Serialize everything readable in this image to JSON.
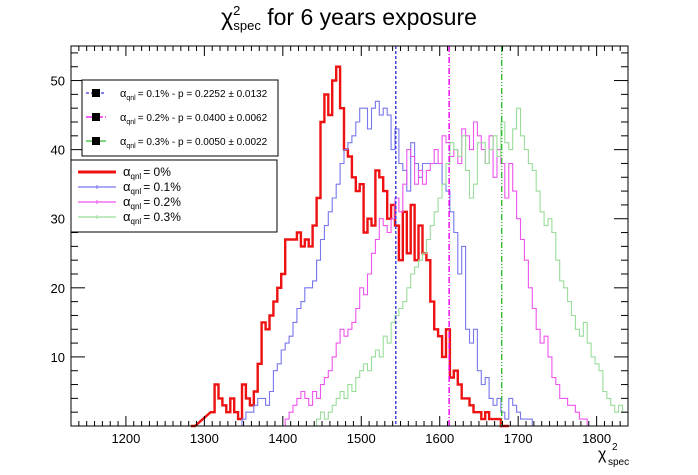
{
  "chart_data": {
    "type": "step-histogram",
    "title": "for 6 years exposure",
    "title_symbol": "χ",
    "title_sup": "2",
    "title_sub": "spec",
    "xlabel_symbol": "χ",
    "xlabel_sup": "2",
    "xlabel_sub": "spec",
    "xlim": [
      1130,
      1840
    ],
    "ylim": [
      0,
      55
    ],
    "x_ticks": [
      1200,
      1300,
      1400,
      1500,
      1600,
      1700,
      1800
    ],
    "y_ticks": [
      10,
      20,
      30,
      40,
      50
    ],
    "bin_width": 5,
    "legend_pvalues": [
      {
        "label_sym": "α",
        "label_sub": "qnl",
        "text": "= 0.1% - p = 0.2252 ± 0.0132",
        "color": "#3333dd",
        "dash": "3,2",
        "marker_x": 1544
      },
      {
        "label_sym": "α",
        "label_sub": "qnl",
        "text": "= 0.2% - p = 0.0400 ± 0.0062",
        "color": "#ee00ee",
        "dash": "6,2,1,2",
        "marker_x": 1612
      },
      {
        "label_sym": "α",
        "label_sub": "qnl",
        "text": "= 0.3% - p = 0.0050 ± 0.0022",
        "color": "#33bb33",
        "dash": "6,2,1,2,1,2",
        "marker_x": 1679
      }
    ],
    "series": [
      {
        "name": "= 0%",
        "label_sym": "α",
        "label_sub": "qnl",
        "color": "#ee1111",
        "width": 2.4,
        "x": [
          1283,
          1308,
          1313,
          1318,
          1323,
          1328,
          1333,
          1338,
          1343,
          1348,
          1353,
          1358,
          1363,
          1368,
          1373,
          1378,
          1383,
          1388,
          1393,
          1398,
          1403,
          1408,
          1413,
          1418,
          1423,
          1428,
          1433,
          1438,
          1443,
          1448,
          1453,
          1458,
          1463,
          1468,
          1473,
          1478,
          1483,
          1488,
          1493,
          1498,
          1503,
          1508,
          1513,
          1518,
          1523,
          1528,
          1533,
          1538,
          1543,
          1548,
          1553,
          1558,
          1563,
          1568,
          1573,
          1578,
          1583,
          1588,
          1593,
          1598,
          1603,
          1608,
          1613,
          1618,
          1623,
          1628,
          1633,
          1638,
          1643,
          1648,
          1653,
          1658,
          1663,
          1668,
          1673,
          1678,
          1683
        ],
        "y": [
          0,
          2,
          6,
          4,
          3,
          2,
          4,
          2,
          1,
          6,
          4,
          3,
          5,
          9,
          15,
          14,
          16,
          18,
          20,
          22,
          27,
          27,
          27,
          28,
          26,
          27,
          26,
          29,
          33,
          44,
          48,
          45,
          50,
          52,
          46,
          40,
          39,
          36,
          34,
          35,
          28,
          30,
          29,
          37,
          36,
          34,
          30,
          32,
          29,
          24,
          31,
          25,
          32,
          24,
          29,
          25,
          24,
          18,
          14,
          13,
          10,
          14,
          7,
          8,
          6,
          4,
          4,
          3,
          2,
          2,
          1,
          2,
          1,
          1,
          1,
          0,
          0
        ]
      },
      {
        "name": "= 0.1%",
        "label_sym": "α",
        "label_sub": "qnl",
        "color": "#7777ee",
        "width": 1.1,
        "x": [
          1343,
          1348,
          1353,
          1358,
          1363,
          1368,
          1373,
          1378,
          1383,
          1388,
          1393,
          1398,
          1403,
          1408,
          1413,
          1418,
          1423,
          1428,
          1433,
          1438,
          1443,
          1448,
          1453,
          1458,
          1463,
          1468,
          1473,
          1478,
          1483,
          1488,
          1493,
          1498,
          1503,
          1508,
          1513,
          1518,
          1523,
          1528,
          1533,
          1538,
          1543,
          1548,
          1553,
          1558,
          1563,
          1568,
          1573,
          1578,
          1583,
          1588,
          1593,
          1598,
          1603,
          1608,
          1613,
          1618,
          1623,
          1628,
          1633,
          1638,
          1643,
          1648,
          1653,
          1658,
          1663,
          1668,
          1673,
          1678,
          1683,
          1688,
          1693,
          1698,
          1703,
          1708,
          1713,
          1718,
          1723
        ],
        "y": [
          0,
          1,
          2,
          2,
          3,
          4,
          4,
          3,
          5,
          8,
          9,
          11,
          12,
          13,
          15,
          17,
          18,
          20,
          20,
          21,
          24,
          27,
          29,
          31,
          33,
          35,
          38,
          40,
          41,
          42,
          44,
          46,
          46,
          43,
          46,
          47,
          45,
          46,
          45,
          40,
          43,
          38,
          37,
          34,
          41,
          38,
          36,
          38,
          38,
          38,
          38,
          38,
          35,
          34,
          31,
          28,
          22,
          26,
          14,
          12,
          14,
          8,
          6,
          7,
          4,
          3,
          4,
          2,
          1,
          4,
          3,
          2,
          1,
          1,
          1,
          0,
          0
        ]
      },
      {
        "name": "= 0.2%",
        "label_sym": "α",
        "label_sub": "qnl",
        "color": "#ee55ee",
        "width": 1.1,
        "x": [
          1398,
          1403,
          1408,
          1413,
          1418,
          1423,
          1428,
          1433,
          1438,
          1443,
          1448,
          1453,
          1458,
          1463,
          1468,
          1473,
          1478,
          1483,
          1488,
          1493,
          1498,
          1503,
          1508,
          1513,
          1518,
          1523,
          1528,
          1533,
          1538,
          1543,
          1548,
          1553,
          1558,
          1563,
          1568,
          1573,
          1578,
          1583,
          1588,
          1593,
          1598,
          1603,
          1608,
          1613,
          1618,
          1623,
          1628,
          1633,
          1638,
          1643,
          1648,
          1653,
          1658,
          1663,
          1668,
          1673,
          1678,
          1683,
          1688,
          1693,
          1698,
          1703,
          1708,
          1713,
          1718,
          1723,
          1728,
          1733,
          1738,
          1743,
          1748,
          1753,
          1758,
          1763,
          1768,
          1773,
          1778,
          1783,
          1788
        ],
        "y": [
          0,
          1,
          2,
          3,
          4,
          5,
          4,
          3,
          5,
          4,
          6,
          7,
          8,
          10,
          12,
          14,
          13,
          14,
          15,
          17,
          20,
          19,
          22,
          25,
          27,
          30,
          29,
          28,
          30,
          33,
          31,
          35,
          40,
          39,
          35,
          37,
          35,
          37,
          38,
          40,
          38,
          42,
          41,
          39,
          40,
          38,
          43,
          42,
          40,
          44,
          42,
          40,
          38,
          42,
          36,
          40,
          38,
          33,
          38,
          34,
          30,
          27,
          24,
          20,
          17,
          14,
          12,
          13,
          10,
          7,
          6,
          4,
          4,
          3,
          3,
          2,
          1,
          1,
          0
        ]
      },
      {
        "name": "= 0.3%",
        "label_sym": "α",
        "label_sub": "qnl",
        "color": "#99dd99",
        "width": 1.1,
        "x": [
          1438,
          1443,
          1448,
          1453,
          1458,
          1463,
          1468,
          1473,
          1478,
          1483,
          1488,
          1493,
          1498,
          1503,
          1508,
          1513,
          1518,
          1523,
          1528,
          1533,
          1538,
          1543,
          1548,
          1553,
          1558,
          1563,
          1568,
          1573,
          1578,
          1583,
          1588,
          1593,
          1598,
          1603,
          1608,
          1613,
          1618,
          1623,
          1628,
          1633,
          1638,
          1643,
          1648,
          1653,
          1658,
          1663,
          1668,
          1673,
          1678,
          1683,
          1688,
          1693,
          1698,
          1703,
          1708,
          1713,
          1718,
          1723,
          1728,
          1733,
          1738,
          1743,
          1748,
          1753,
          1758,
          1763,
          1768,
          1773,
          1778,
          1783,
          1788,
          1793,
          1798,
          1803,
          1808,
          1813,
          1818,
          1823,
          1828,
          1833
        ],
        "y": [
          0,
          1,
          2,
          1,
          2,
          3,
          4,
          5,
          4,
          6,
          5,
          7,
          8,
          9,
          8,
          10,
          11,
          10,
          13,
          12,
          15,
          16,
          17,
          18,
          20,
          22,
          23,
          24,
          25,
          27,
          29,
          31,
          33,
          35,
          38,
          41,
          40,
          39,
          42,
          37,
          33,
          35,
          41,
          41,
          38,
          40,
          42,
          39,
          44,
          41,
          40,
          43,
          46,
          42,
          40,
          38,
          37,
          34,
          31,
          29,
          30,
          28,
          24,
          21,
          20,
          18,
          16,
          14,
          13,
          15,
          12,
          10,
          9,
          8,
          5,
          4,
          3,
          2,
          3,
          2
        ]
      }
    ],
    "vlines": [
      {
        "x": 1544,
        "color": "#3333dd",
        "dash": "3,2"
      },
      {
        "x": 1612,
        "color": "#ee00ee",
        "dash": "6,2,1,2"
      },
      {
        "x": 1679,
        "color": "#33bb33",
        "dash": "6,2,1,2,1,2"
      }
    ]
  }
}
